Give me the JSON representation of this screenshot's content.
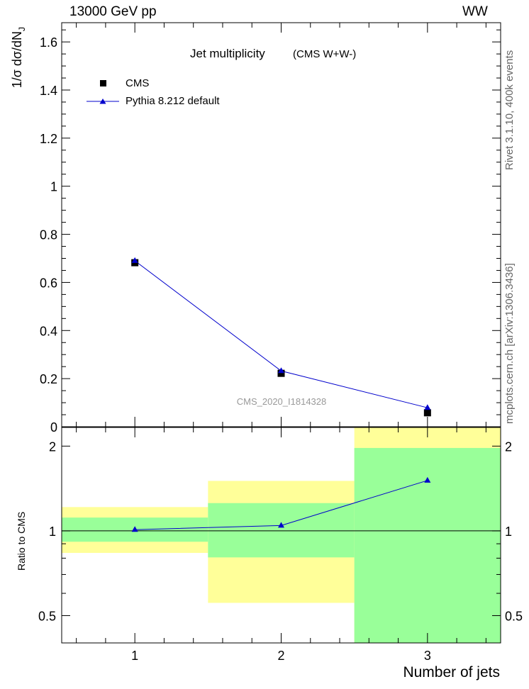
{
  "header": {
    "left": "13000 GeV pp",
    "right": "WW"
  },
  "side_text": {
    "rivet": "Rivet 3.1.10,  400k events",
    "mcplots": "mcplots.cern.ch [arXiv:1306.3436]"
  },
  "chart_data": [
    {
      "type": "scatter",
      "panel": "main",
      "title": "Jet multiplicity",
      "title_note": "(CMS W+W-)",
      "ylabel": "1/σ dσ/dN_J",
      "xlim": [
        0.5,
        3.5
      ],
      "ylim": [
        0,
        1.68
      ],
      "yticks": [
        0,
        0.2,
        0.4,
        0.6,
        0.8,
        1,
        1.2,
        1.4,
        1.6
      ],
      "ytick_labels": [
        "0",
        "0.2",
        "0.4",
        "0.6",
        "0.8",
        "1",
        "1.2",
        "1.4",
        "1.6"
      ],
      "watermark": "CMS_2020_I1814328",
      "legend_position": "top-left",
      "x": [
        1,
        2,
        3
      ],
      "series": [
        {
          "name": "CMS",
          "marker": "square",
          "color": "#000000",
          "values": [
            0.682,
            0.222,
            0.058
          ]
        },
        {
          "name": "Pythia 8.212 default",
          "marker": "triangle",
          "color": "#0000cc",
          "line": true,
          "values": [
            0.69,
            0.232,
            0.079
          ]
        }
      ]
    },
    {
      "type": "ratio",
      "panel": "ratio",
      "ylabel": "Ratio to CMS",
      "xlabel": "Number of jets",
      "scale": "log",
      "ylim": [
        0.4,
        2.33
      ],
      "yticks": [
        0.5,
        1,
        2
      ],
      "ytick_labels": [
        "0.5",
        "1",
        "2"
      ],
      "xticks": [
        1,
        2,
        3
      ],
      "xtick_labels": [
        "1",
        "2",
        "3"
      ],
      "bins": [
        [
          0.5,
          1.5
        ],
        [
          1.5,
          2.5
        ],
        [
          2.5,
          3.5
        ]
      ],
      "band_stat": [
        [
          0.915,
          1.115
        ],
        [
          0.805,
          1.255
        ],
        [
          0.38,
          1.97
        ]
      ],
      "band_total": [
        [
          0.835,
          1.215
        ],
        [
          0.555,
          1.505
        ],
        [
          0.38,
          2.33
        ]
      ],
      "band_colors": {
        "stat": "#99ff99",
        "total": "#ffff99"
      },
      "reference_line": 1,
      "series": [
        {
          "name": "Pythia 8.212 default",
          "marker": "triangle",
          "color": "#0000cc",
          "x": [
            1,
            2,
            3
          ],
          "values": [
            1.01,
            1.045,
            1.51
          ]
        }
      ]
    }
  ]
}
